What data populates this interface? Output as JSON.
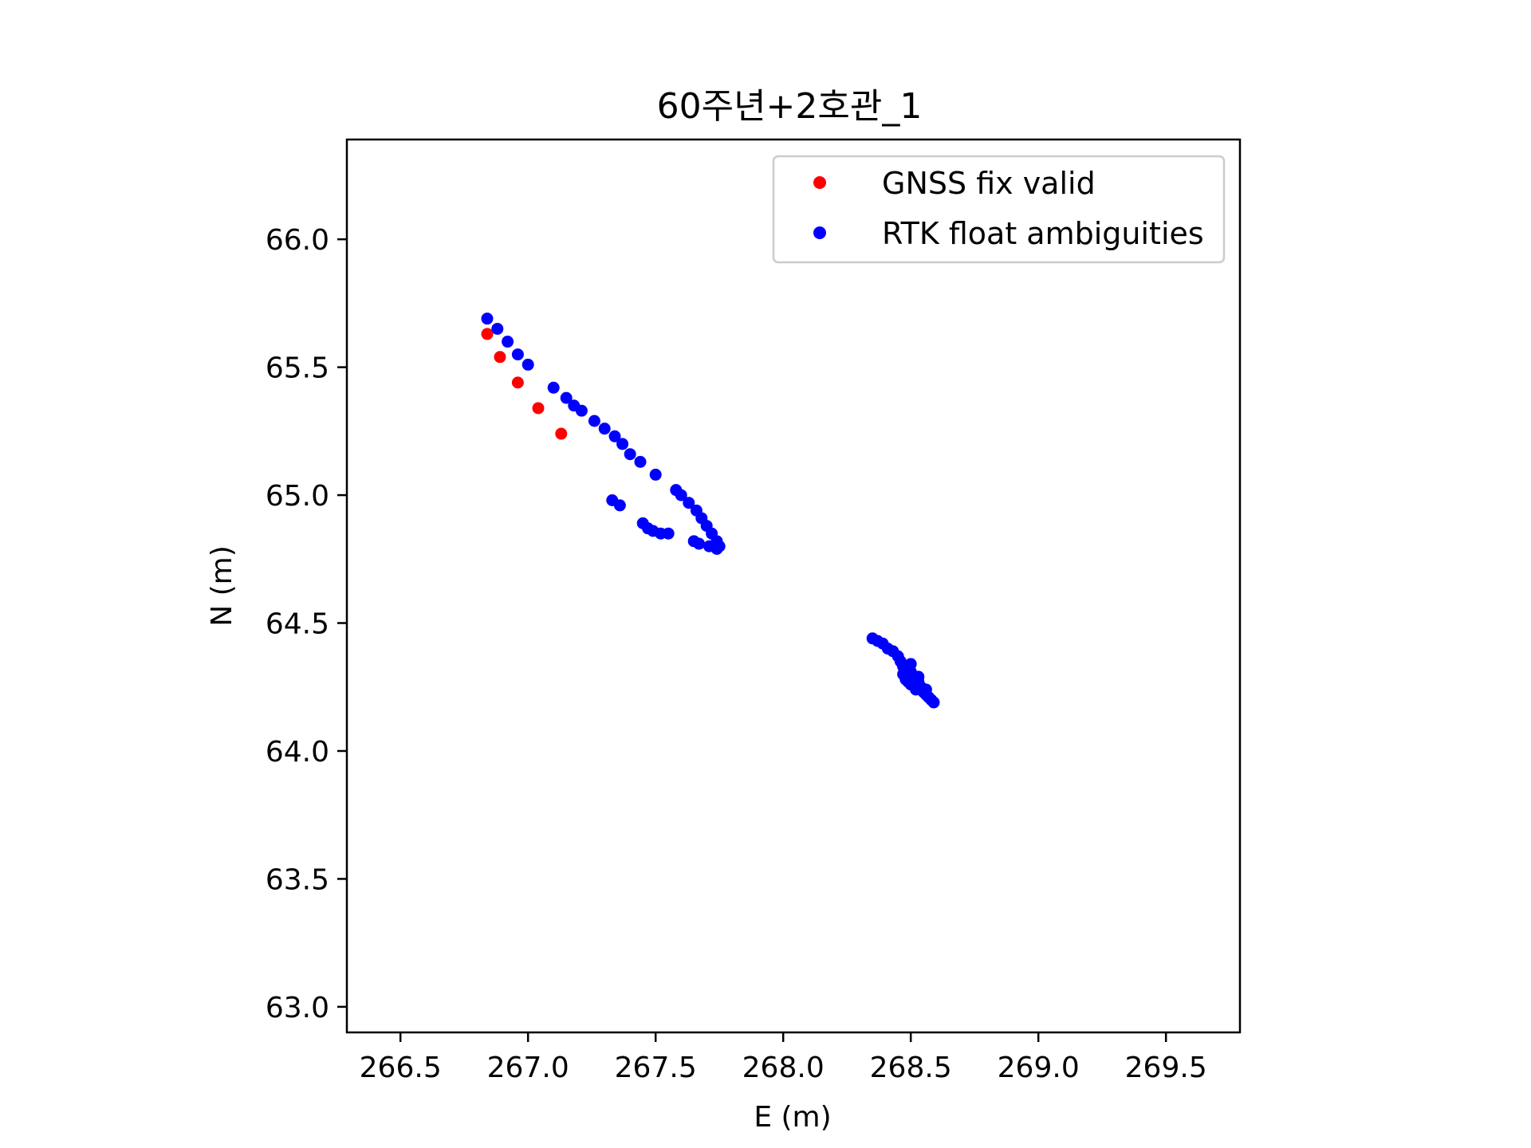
{
  "chart_data": {
    "type": "scatter",
    "title": "60주년+2호관_1",
    "xlabel": "E (m)",
    "ylabel": "N (m)",
    "xlim": [
      266.29,
      269.79
    ],
    "ylim": [
      62.9,
      66.39
    ],
    "x_ticks": [
      "266.5",
      "267.0",
      "267.5",
      "268.0",
      "268.5",
      "269.0",
      "269.5"
    ],
    "y_ticks": [
      "63.0",
      "63.5",
      "64.0",
      "64.5",
      "65.0",
      "65.5",
      "66.0"
    ],
    "grid": false,
    "legend_position": "upper right",
    "series": [
      {
        "name": "GNSS fix valid",
        "color": "#ff0000",
        "points": [
          [
            266.84,
            65.63
          ],
          [
            266.89,
            65.54
          ],
          [
            266.96,
            65.44
          ],
          [
            267.04,
            65.34
          ],
          [
            267.13,
            65.24
          ]
        ]
      },
      {
        "name": "RTK float ambiguities",
        "color": "#0000ff",
        "points": [
          [
            266.84,
            65.69
          ],
          [
            266.88,
            65.65
          ],
          [
            266.92,
            65.6
          ],
          [
            266.96,
            65.55
          ],
          [
            267.0,
            65.51
          ],
          [
            267.1,
            65.42
          ],
          [
            267.15,
            65.38
          ],
          [
            267.18,
            65.35
          ],
          [
            267.21,
            65.33
          ],
          [
            267.26,
            65.29
          ],
          [
            267.3,
            65.26
          ],
          [
            267.34,
            65.23
          ],
          [
            267.37,
            65.2
          ],
          [
            267.4,
            65.16
          ],
          [
            267.44,
            65.13
          ],
          [
            267.5,
            65.08
          ],
          [
            267.58,
            65.02
          ],
          [
            267.6,
            65.0
          ],
          [
            267.63,
            64.97
          ],
          [
            267.66,
            64.94
          ],
          [
            267.68,
            64.91
          ],
          [
            267.7,
            64.88
          ],
          [
            267.72,
            64.85
          ],
          [
            267.74,
            64.82
          ],
          [
            267.75,
            64.8
          ],
          [
            267.74,
            64.79
          ],
          [
            267.71,
            64.8
          ],
          [
            267.67,
            64.81
          ],
          [
            267.65,
            64.82
          ],
          [
            267.55,
            64.85
          ],
          [
            267.52,
            64.85
          ],
          [
            267.49,
            64.86
          ],
          [
            267.47,
            64.87
          ],
          [
            267.45,
            64.89
          ],
          [
            267.36,
            64.96
          ],
          [
            267.33,
            64.98
          ],
          [
            268.35,
            64.44
          ],
          [
            268.37,
            64.43
          ],
          [
            268.39,
            64.42
          ],
          [
            268.41,
            64.4
          ],
          [
            268.43,
            64.39
          ],
          [
            268.45,
            64.37
          ],
          [
            268.46,
            64.35
          ],
          [
            268.47,
            64.33
          ],
          [
            268.48,
            64.31
          ],
          [
            268.47,
            64.3
          ],
          [
            268.49,
            64.29
          ],
          [
            268.5,
            64.34
          ],
          [
            268.5,
            64.31
          ],
          [
            268.51,
            64.28
          ],
          [
            268.49,
            64.27
          ],
          [
            268.52,
            64.26
          ],
          [
            268.53,
            64.27
          ],
          [
            268.52,
            64.24
          ],
          [
            268.54,
            64.25
          ],
          [
            268.55,
            64.23
          ],
          [
            268.56,
            64.24
          ],
          [
            268.56,
            64.22
          ],
          [
            268.57,
            64.21
          ],
          [
            268.58,
            64.2
          ],
          [
            268.59,
            64.19
          ],
          [
            268.48,
            64.28
          ],
          [
            268.5,
            64.26
          ],
          [
            268.53,
            64.29
          ]
        ]
      }
    ]
  }
}
